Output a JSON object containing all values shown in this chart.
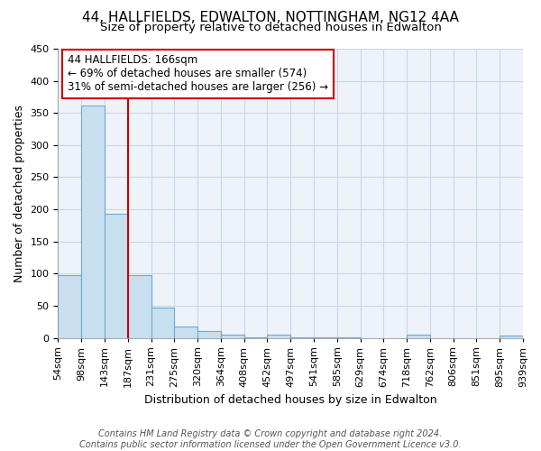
{
  "title": "44, HALLFIELDS, EDWALTON, NOTTINGHAM, NG12 4AA",
  "subtitle": "Size of property relative to detached houses in Edwalton",
  "xlabel": "Distribution of detached houses by size in Edwalton",
  "ylabel": "Number of detached properties",
  "bar_values": [
    97,
    362,
    193,
    97,
    47,
    17,
    10,
    5,
    1,
    5,
    1,
    1,
    1,
    0,
    0,
    5,
    0,
    0,
    0,
    3
  ],
  "bar_labels": [
    "54sqm",
    "98sqm",
    "143sqm",
    "187sqm",
    "231sqm",
    "275sqm",
    "320sqm",
    "364sqm",
    "408sqm",
    "452sqm",
    "497sqm",
    "541sqm",
    "585sqm",
    "629sqm",
    "674sqm",
    "718sqm",
    "762sqm",
    "806sqm",
    "851sqm",
    "895sqm",
    "939sqm"
  ],
  "bar_color": "#c8dff0",
  "bar_edgecolor": "#6aaad4",
  "vline_x": 2.5,
  "vline_color": "#cc0000",
  "annotation_text": "44 HALLFIELDS: 166sqm\n← 69% of detached houses are smaller (574)\n31% of semi-detached houses are larger (256) →",
  "annotation_box_color": "#ffffff",
  "annotation_box_edgecolor": "#cc0000",
  "ylim": [
    0,
    450
  ],
  "yticks": [
    0,
    50,
    100,
    150,
    200,
    250,
    300,
    350,
    400,
    450
  ],
  "grid_color": "#c8d8e8",
  "footer_line1": "Contains HM Land Registry data © Crown copyright and database right 2024.",
  "footer_line2": "Contains public sector information licensed under the Open Government Licence v3.0.",
  "title_fontsize": 11,
  "subtitle_fontsize": 9.5,
  "axis_label_fontsize": 9,
  "tick_fontsize": 8,
  "annotation_fontsize": 8.5,
  "footer_fontsize": 7,
  "bg_color": "#ffffff",
  "plot_bg_color": "#eef3f9"
}
